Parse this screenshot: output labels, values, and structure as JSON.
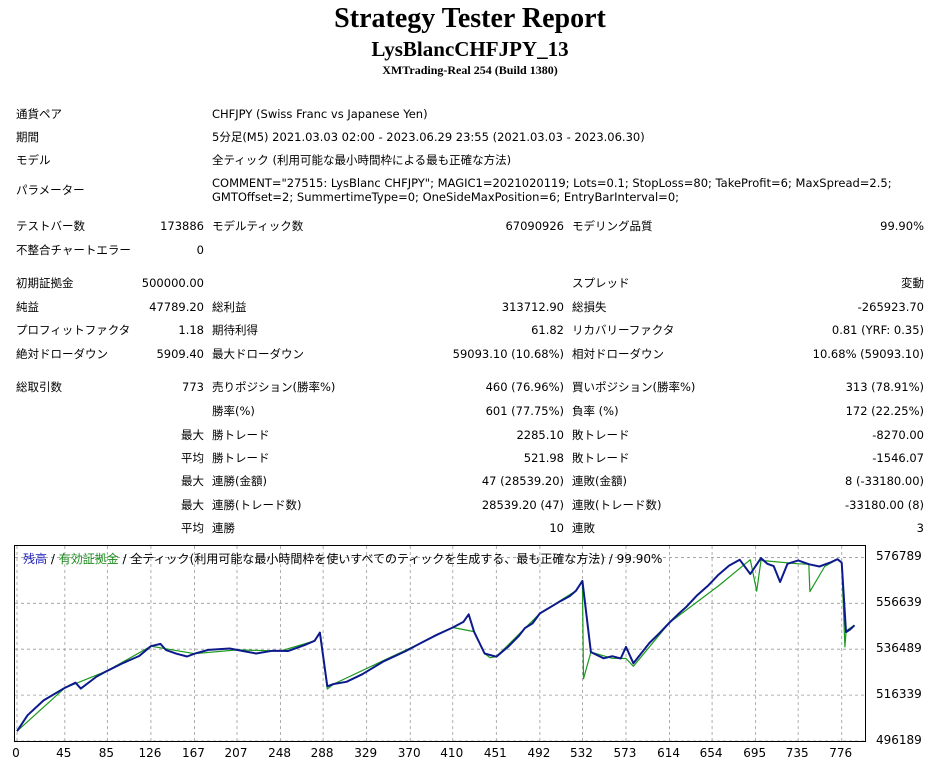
{
  "header": {
    "title": "Strategy Tester Report",
    "ea_name": "LysBlancCHFJPY_13",
    "build": "XMTrading-Real 254 (Build 1380)"
  },
  "info": {
    "symbol_label": "通貨ペア",
    "symbol_value": "CHFJPY (Swiss Franc vs Japanese Yen)",
    "period_label": "期間",
    "period_value": "5分足(M5) 2021.03.03 02:00 - 2023.06.29 23:55 (2021.03.03 - 2023.06.30)",
    "model_label": "モデル",
    "model_value": "全ティック (利用可能な最小時間枠による最も正確な方法)",
    "params_label": "パラメーター",
    "params_value": "COMMENT=\"27515: LysBlanc CHFJPY\"; MAGIC1=2021020119; Lots=0.1; StopLoss=80; TakeProfit=6; MaxSpread=2.5; GMTOffset=2; SummertimeType=0; OneSideMaxPosition=6; EntryBarInterval=0;"
  },
  "stats": {
    "bars_label": "テストバー数",
    "bars_value": "173886",
    "ticks_label": "モデルティック数",
    "ticks_value": "67090926",
    "quality_label": "モデリング品質",
    "quality_value": "99.90%",
    "mismatch_label": "不整合チャートエラー",
    "mismatch_value": "0",
    "deposit_label": "初期証拠金",
    "deposit_value": "500000.00",
    "spread_label": "スプレッド",
    "spread_value": "変動",
    "net_label": "純益",
    "net_value": "47789.20",
    "gross_profit_label": "総利益",
    "gross_profit_value": "313712.90",
    "gross_loss_label": "総損失",
    "gross_loss_value": "-265923.70",
    "pf_label": "プロフィットファクタ",
    "pf_value": "1.18",
    "expected_label": "期待利得",
    "expected_value": "61.82",
    "recovery_label": "リカバリーファクタ",
    "recovery_value": "0.81 (YRF: 0.35)",
    "abs_dd_label": "絶対ドローダウン",
    "abs_dd_value": "5909.40",
    "max_dd_label": "最大ドローダウン",
    "max_dd_value": "59093.10 (10.68%)",
    "rel_dd_label": "相対ドローダウン",
    "rel_dd_value": "10.68% (59093.10)",
    "total_trades_label": "総取引数",
    "total_trades_value": "773",
    "short_label": "売りポジション(勝率%)",
    "short_value": "460 (76.96%)",
    "long_label": "買いポジション(勝率%)",
    "long_value": "313 (78.91%)",
    "win_rate_label": "勝率(%)",
    "win_rate_value": "601 (77.75%)",
    "loss_rate_label": "負率 (%)",
    "loss_rate_value": "172 (22.25%)",
    "largest_prefix": "最大",
    "largest_win_label": "勝トレード",
    "largest_win_value": "2285.10",
    "largest_loss_label": "敗トレード",
    "largest_loss_value": "-8270.00",
    "average_prefix": "平均",
    "avg_win_label": "勝トレード",
    "avg_win_value": "521.98",
    "avg_loss_label": "敗トレード",
    "avg_loss_value": "-1546.07",
    "max_consec_prefix": "最大",
    "max_consec_wins_label": "連勝(金額)",
    "max_consec_wins_value": "47 (28539.20)",
    "max_consec_losses_label": "連敗(金額)",
    "max_consec_losses_value": "8 (-33180.00)",
    "max_consec_profit_prefix": "最大",
    "max_consec_profit_label": "連勝(トレード数)",
    "max_consec_profit_value": "28539.20 (47)",
    "max_consec_loss_label": "連敗(トレード数)",
    "max_consec_loss_value": "-33180.00 (8)",
    "avg_consec_prefix": "平均",
    "avg_consec_wins_label": "連勝",
    "avg_consec_wins_value": "10",
    "avg_consec_losses_label": "連敗",
    "avg_consec_losses_value": "3"
  },
  "chart_legend": {
    "balance": "残高",
    "sep1": " / ",
    "equity": "有効証拠金",
    "rest": " / 全ティック(利用可能な最小時間枠を使いすべてのティックを生成する、最も正確な方法) / 99.90%"
  },
  "colors": {
    "balance": "#0d1a8c",
    "equity": "#1b9a1b",
    "grid": "#9a9a9a"
  },
  "chart_data": {
    "type": "line",
    "xlabel": "",
    "ylabel": "",
    "xlim": [
      0,
      796
    ],
    "ylim": [
      496189,
      581804
    ],
    "x_ticks": [
      "0",
      "45",
      "85",
      "126",
      "167",
      "207",
      "248",
      "288",
      "329",
      "370",
      "410",
      "451",
      "492",
      "532",
      "573",
      "614",
      "654",
      "695",
      "735",
      "776"
    ],
    "x_tick_values": [
      0,
      45,
      85,
      126,
      167,
      207,
      248,
      288,
      329,
      370,
      410,
      451,
      492,
      532,
      573,
      614,
      654,
      695,
      735,
      776
    ],
    "y_ticks": [
      "576789",
      "556639",
      "536489",
      "516339",
      "496189"
    ],
    "y_tick_values": [
      576789,
      556639,
      536489,
      516339,
      496189
    ],
    "grid": true,
    "series": [
      {
        "name": "残高",
        "x": [
          0,
          10,
          25,
          45,
          55,
          60,
          75,
          85,
          100,
          115,
          126,
          135,
          140,
          150,
          160,
          167,
          180,
          200,
          215,
          225,
          240,
          255,
          270,
          280,
          285,
          292,
          298,
          310,
          325,
          345,
          365,
          380,
          395,
          410,
          420,
          425,
          430,
          440,
          451,
          462,
          472,
          478,
          485,
          492,
          505,
          512,
          520,
          526,
          532,
          540,
          552,
          560,
          568,
          573,
          580,
          595,
          605,
          614,
          622,
          630,
          640,
          650,
          660,
          670,
          680,
          690,
          700,
          706,
          712,
          718,
          725,
          735,
          745,
          755,
          765,
          772,
          776,
          780,
          784,
          788
        ],
        "y": [
          500500,
          507500,
          514000,
          519500,
          521800,
          519200,
          524500,
          527000,
          530500,
          533500,
          537800,
          538800,
          536200,
          534500,
          533300,
          534500,
          536200,
          536800,
          535500,
          534600,
          535800,
          535700,
          538200,
          540200,
          543800,
          520200,
          521200,
          522200,
          525500,
          531200,
          535500,
          539200,
          542800,
          546000,
          548500,
          551800,
          544200,
          534600,
          533200,
          537500,
          542200,
          545800,
          547800,
          552200,
          555800,
          557800,
          559800,
          562200,
          566500,
          535200,
          532500,
          533400,
          532400,
          537500,
          530300,
          539200,
          543800,
          548200,
          551800,
          555200,
          560200,
          564300,
          569200,
          573200,
          575800,
          569500,
          576500,
          574000,
          573000,
          566000,
          574000,
          575500,
          573800,
          572800,
          574500,
          576000,
          574500,
          544000,
          545200,
          547000
        ]
      },
      {
        "name": "有効証拠金",
        "x": [
          0,
          45,
          85,
          126,
          167,
          207,
          248,
          280,
          285,
          292,
          298,
          340,
          380,
          410,
          430,
          440,
          445,
          451,
          492,
          526,
          532,
          533,
          540,
          560,
          573,
          580,
          614,
          660,
          690,
          696,
          700,
          735,
          745,
          746,
          760,
          772,
          776,
          779,
          780,
          782,
          788
        ],
        "y": [
          500500,
          519500,
          527000,
          537800,
          534500,
          536200,
          535700,
          540200,
          543800,
          519000,
          521200,
          530500,
          539200,
          546000,
          544200,
          534600,
          532800,
          533200,
          552200,
          562200,
          566500,
          523500,
          535200,
          532500,
          532400,
          529000,
          548200,
          564300,
          575800,
          562000,
          575500,
          574000,
          573800,
          561800,
          572800,
          576000,
          574500,
          537500,
          544000,
          545200,
          547000
        ]
      }
    ]
  }
}
